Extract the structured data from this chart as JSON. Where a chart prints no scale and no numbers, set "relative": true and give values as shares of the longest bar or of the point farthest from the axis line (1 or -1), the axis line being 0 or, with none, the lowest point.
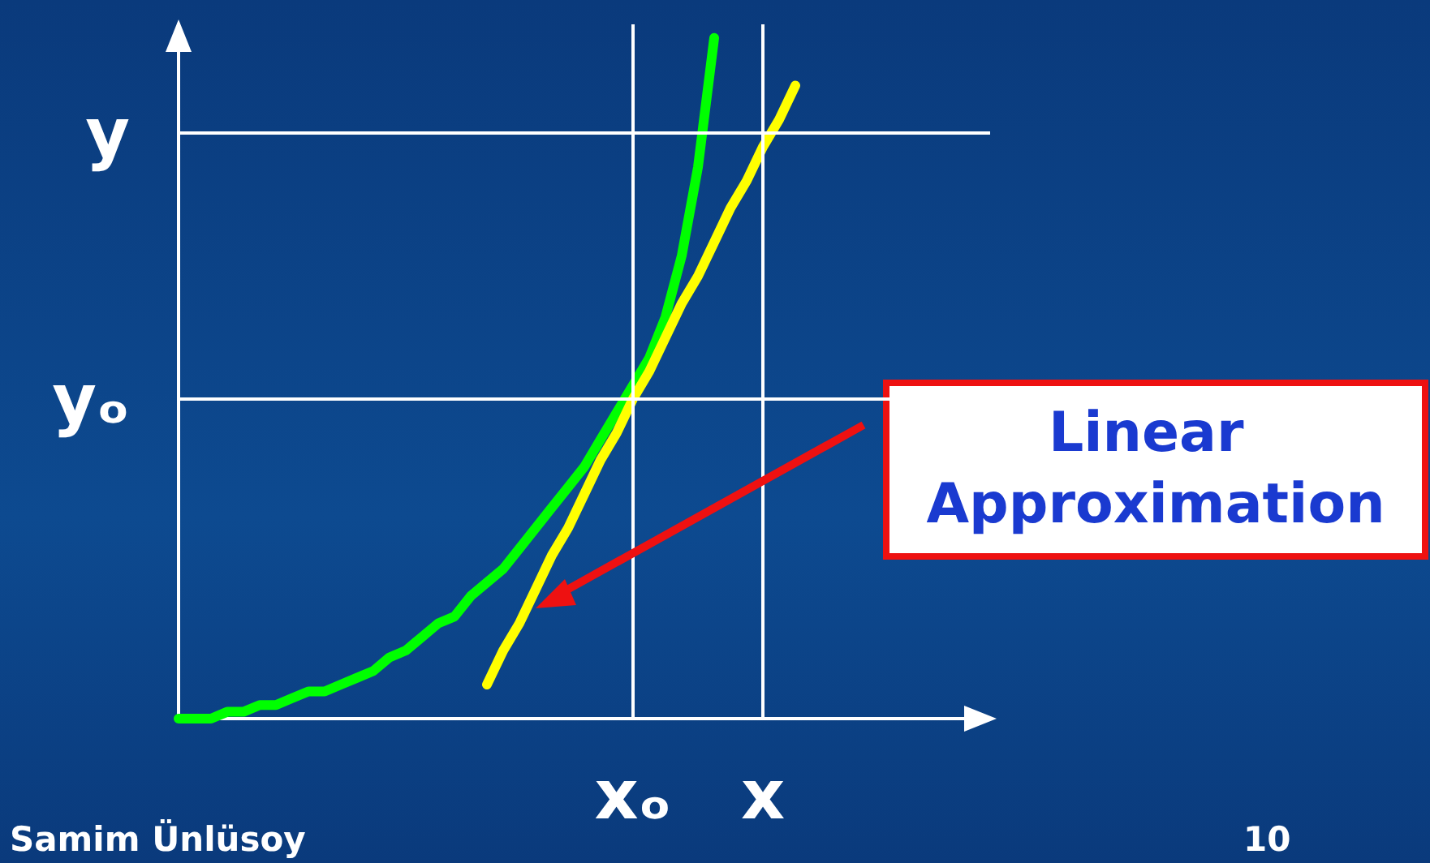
{
  "chart_data": {
    "type": "line",
    "relative": true,
    "categories": [
      null,
      null,
      null,
      null,
      null,
      null,
      null,
      null,
      null,
      null,
      null,
      null,
      null,
      null,
      null,
      null,
      null,
      null,
      null,
      null,
      null,
      null,
      null,
      null,
      null,
      null,
      null,
      null,
      "xₒ",
      null,
      null,
      null,
      null,
      null,
      null,
      null,
      "x",
      null,
      null,
      null,
      null,
      null,
      null,
      null,
      null,
      null,
      null,
      null,
      null,
      null,
      null
    ],
    "series": [
      {
        "color": "#00ff00",
        "values": [
          0,
          0,
          0,
          0.01,
          0.01,
          0.02,
          0.02,
          0.03,
          0.04,
          0.04,
          0.05,
          0.06,
          0.07,
          0.09,
          0.1,
          0.12,
          0.14,
          0.15,
          0.18,
          0.2,
          0.22,
          0.25,
          0.28,
          0.31,
          0.34,
          0.37,
          0.41,
          0.45,
          0.49,
          0.53,
          0.59,
          0.68,
          0.81,
          1,
          null,
          null,
          null,
          null,
          null,
          null,
          null,
          null,
          null,
          null,
          null,
          null,
          null,
          null,
          null,
          null,
          null
        ]
      },
      {
        "color": "#ffff00",
        "values": [
          null,
          null,
          null,
          null,
          null,
          null,
          null,
          null,
          null,
          null,
          null,
          null,
          null,
          null,
          null,
          null,
          null,
          null,
          null,
          0.05,
          0.1,
          0.14,
          0.19,
          0.24,
          0.28,
          0.33,
          0.38,
          0.42,
          0.47,
          0.51,
          0.56,
          0.61,
          0.65,
          0.7,
          0.75,
          0.79,
          0.84,
          0.88,
          0.93,
          null,
          null,
          null,
          null,
          null,
          null,
          null,
          null,
          null,
          null,
          null,
          null
        ]
      }
    ],
    "ref_lines": [
      {
        "axis": "x",
        "value": "xₒ",
        "color": "#ffffff"
      },
      {
        "axis": "x",
        "value": "x",
        "color": "#ffffff"
      },
      {
        "axis": "y",
        "value": 0.47,
        "label": "yₒ",
        "color": "#ffffff"
      },
      {
        "axis": "y",
        "value": 0.86,
        "label": "y",
        "color": "#ffffff"
      }
    ],
    "annotations": [
      "Linear Approximation",
      "Samim Ünlüsoy",
      "10"
    ],
    "grid": false,
    "marker": "none",
    "line_style": "solid"
  }
}
